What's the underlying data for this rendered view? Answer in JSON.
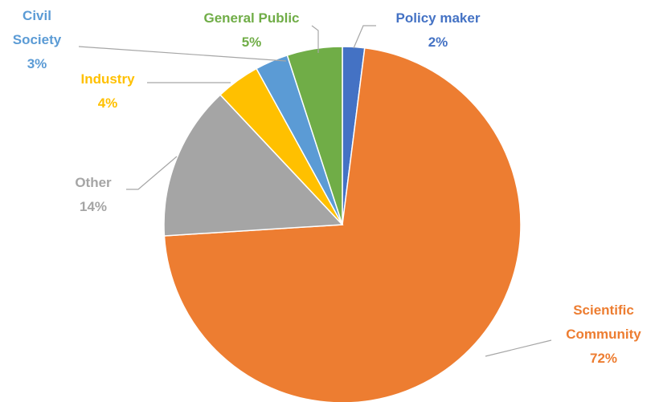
{
  "chart_data": {
    "type": "pie",
    "title": "",
    "slices": [
      {
        "name_lines": [
          "Policy maker"
        ],
        "label": "Policy maker",
        "value": 2,
        "pct_label": "2%",
        "color": "#4472c4"
      },
      {
        "name_lines": [
          "Scientific",
          "Community"
        ],
        "label": "Scientific Community",
        "value": 72,
        "pct_label": "72%",
        "color": "#ed7d31"
      },
      {
        "name_lines": [
          "Other"
        ],
        "label": "Other",
        "value": 14,
        "pct_label": "14%",
        "color": "#a5a5a5"
      },
      {
        "name_lines": [
          "Industry"
        ],
        "label": "Industry",
        "value": 4,
        "pct_label": "4%",
        "color": "#ffc000"
      },
      {
        "name_lines": [
          "Civil",
          "Society"
        ],
        "label": "Civil Society",
        "value": 3,
        "pct_label": "3%",
        "color": "#5b9bd5"
      },
      {
        "name_lines": [
          "General Public"
        ],
        "label": "General Public",
        "value": 5,
        "pct_label": "5%",
        "color": "#70ad47"
      }
    ],
    "start_angle": "top",
    "direction": "clockwise",
    "legend": "none",
    "labels": "outside with leader lines"
  }
}
